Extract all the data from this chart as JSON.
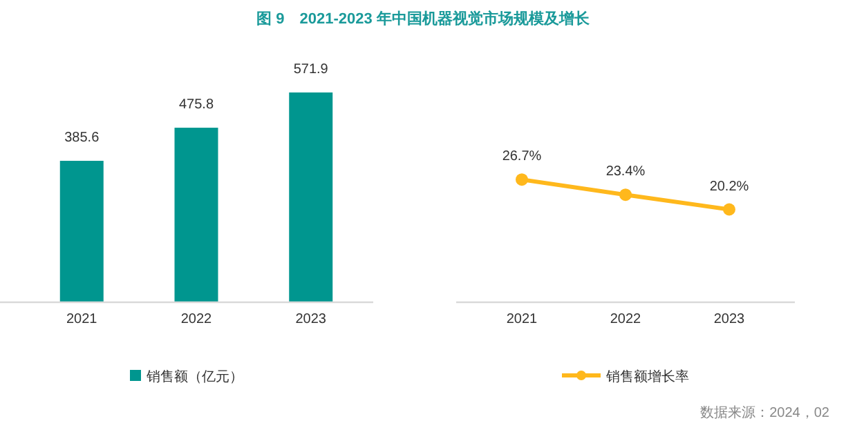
{
  "chart_data": [
    {
      "type": "bar",
      "title": "图 9　2021-2023 年中国机器视觉市场规模及增长",
      "categories": [
        "2021",
        "2022",
        "2023"
      ],
      "series": [
        {
          "name": "销售额（亿元）",
          "color": "#00968f",
          "values": [
            385.6,
            475.8,
            571.9
          ]
        }
      ],
      "data_labels": true,
      "legend": "bottom",
      "grid": false
    },
    {
      "type": "line",
      "categories": [
        "2021",
        "2022",
        "2023"
      ],
      "series": [
        {
          "name": "销售额增长率",
          "color": "#ffb81c",
          "values": [
            26.7,
            23.4,
            20.2
          ],
          "value_labels": [
            "26.7%",
            "23.4%",
            "20.2%"
          ]
        }
      ],
      "marker": "circle",
      "line_style": "solid",
      "legend": "bottom",
      "grid": false,
      "annotations": [
        "数据来源：2024，02"
      ]
    }
  ]
}
